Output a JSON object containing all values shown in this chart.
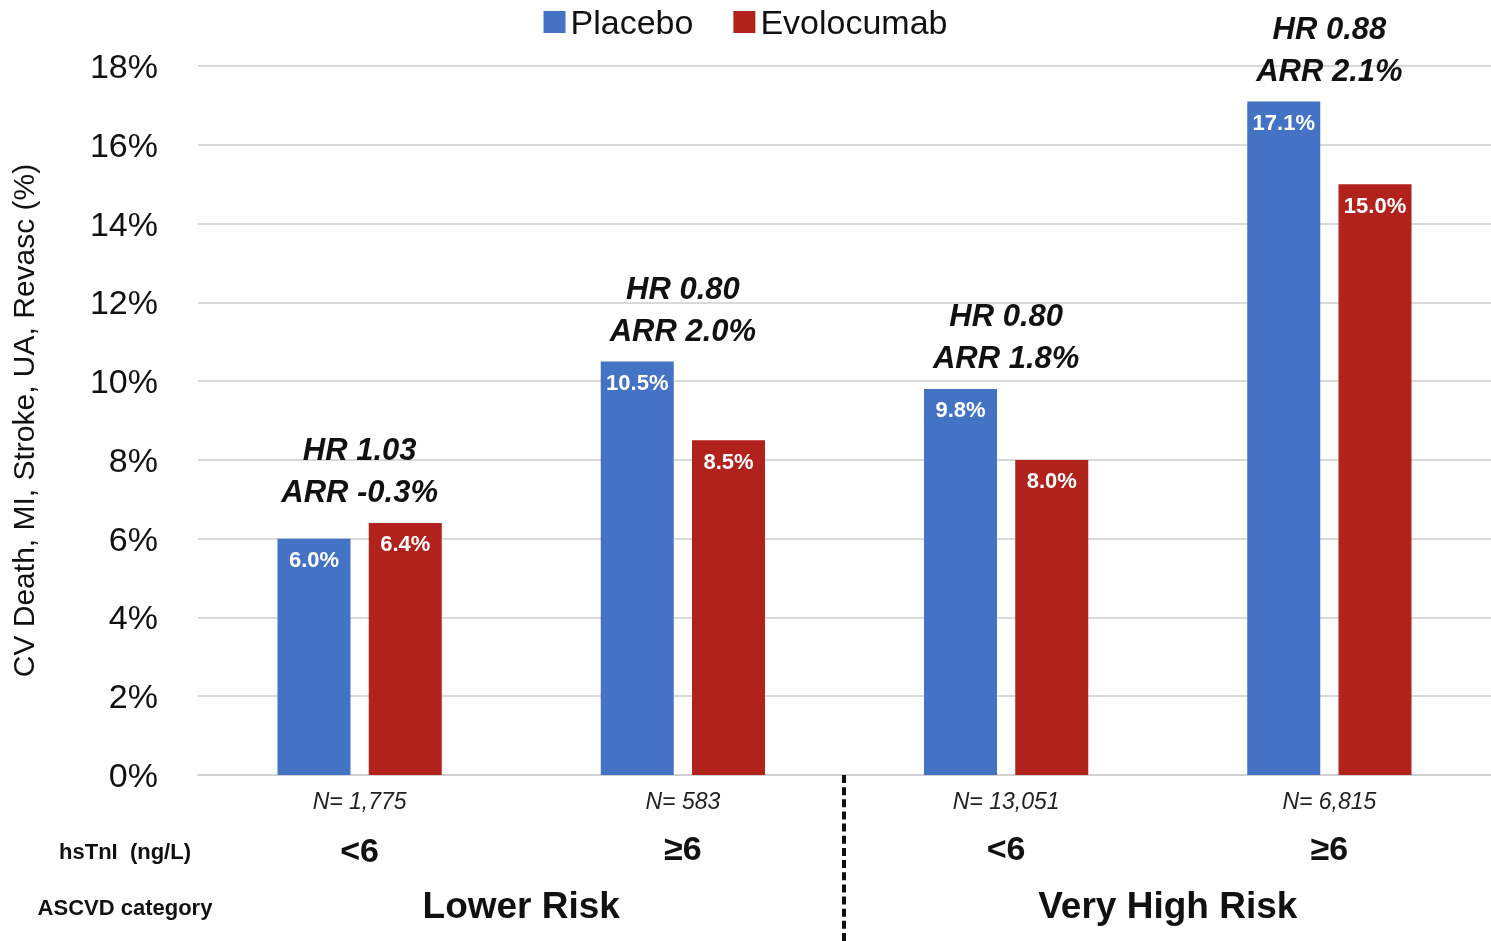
{
  "chart_data": {
    "type": "bar",
    "ylabel": "CV Death, MI, Stroke, UA, Revasc (%)",
    "categories": [
      "N= 1,775",
      "N= 583",
      "N= 13,051",
      "N= 6,815"
    ],
    "series": [
      {
        "name": "Placebo",
        "color": "#4472c4",
        "values": [
          6.0,
          10.5,
          9.8,
          17.1
        ],
        "value_labels": [
          "6.0%",
          "10.5%",
          "9.8%",
          "17.1%"
        ]
      },
      {
        "name": "Evolocumab",
        "color": "#b0221b",
        "values": [
          6.4,
          8.5,
          8.0,
          15.0
        ],
        "value_labels": [
          "6.4%",
          "8.5%",
          "8.0%",
          "15.0%"
        ]
      }
    ],
    "ylim": [
      0,
      18
    ],
    "yticks": [
      {
        "value": 0,
        "label": "0%"
      },
      {
        "value": 2,
        "label": "2%"
      },
      {
        "value": 4,
        "label": "4%"
      },
      {
        "value": 6,
        "label": "6%"
      },
      {
        "value": 8,
        "label": "8%"
      },
      {
        "value": 10,
        "label": "10%"
      },
      {
        "value": 12,
        "label": "12%"
      },
      {
        "value": 14,
        "label": "14%"
      },
      {
        "value": 16,
        "label": "16%"
      },
      {
        "value": 18,
        "label": "18%"
      }
    ],
    "grid": "y",
    "legend": "top",
    "annotations": [
      "HR 1.03\nARR -0.3%",
      "HR 0.80\nARR 2.0%",
      "HR 0.80\nARR 1.8%",
      "HR 0.88\nARR 2.1%",
      "hsTnI  (ng/L)",
      "<6",
      "≥6",
      "<6",
      "≥6",
      "ASCVD category",
      "Lower Risk",
      "Very High Risk"
    ]
  }
}
